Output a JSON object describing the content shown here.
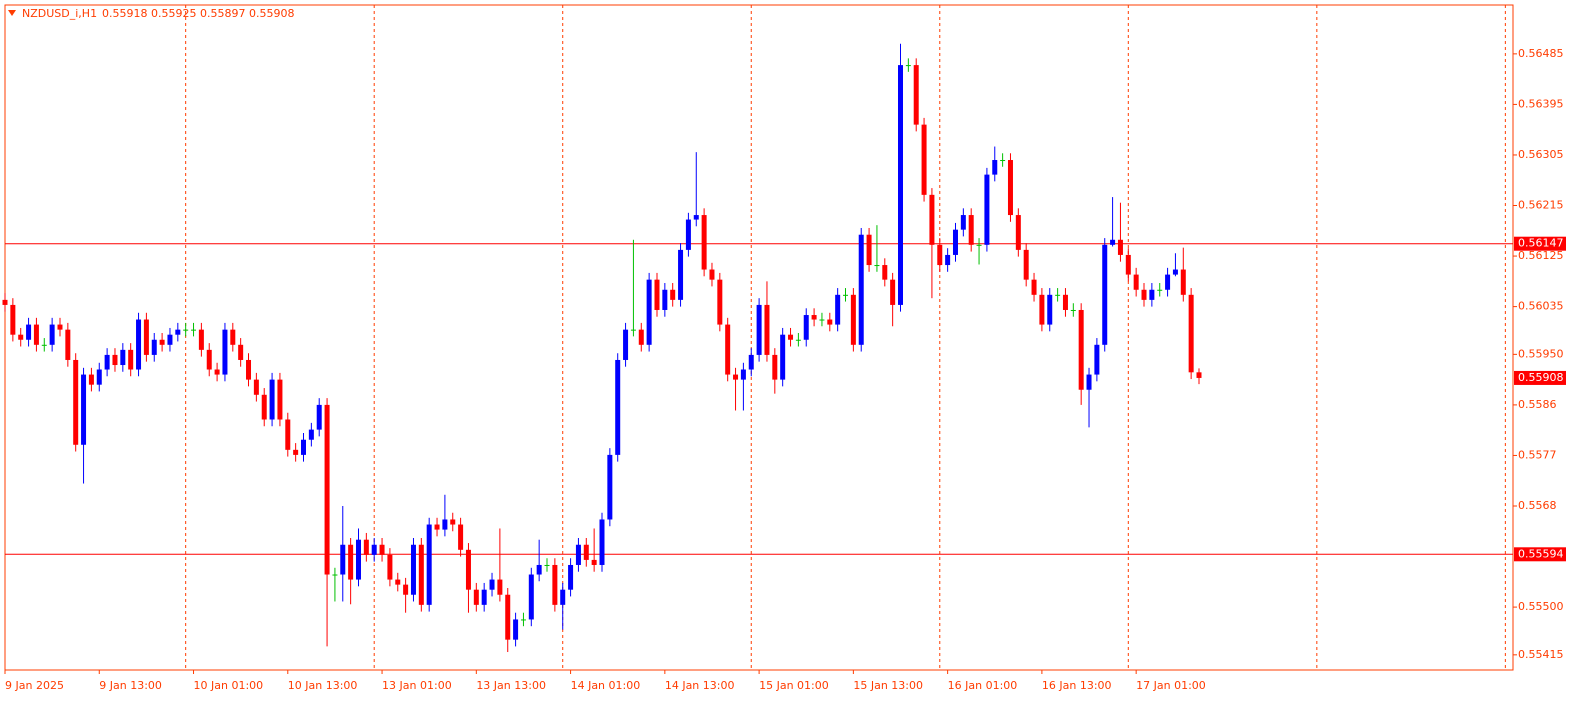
{
  "chart_data": {
    "type": "candlestick",
    "title": "NZDUSD_i,H1",
    "info": "0.55918 0.55925 0.55897 0.55908",
    "colors": {
      "up": "#0000ff",
      "down": "#ff0000",
      "doji": "#00c000",
      "text": "#ff3c00",
      "level": "#ff0000"
    },
    "ylim": [
      0.55388,
      0.56572
    ],
    "yticks": [
      0.56485,
      0.56395,
      0.56305,
      0.56215,
      0.56125,
      0.56035,
      {
        "value": 0.5595,
        "label": "0.55950"
      },
      0.5586,
      0.5577,
      0.5568,
      {
        "value": 0.555,
        "label": "0.55500"
      },
      0.55415
    ],
    "levels": [
      {
        "value": 0.56147
      },
      {
        "value": 0.55594
      }
    ],
    "current_price": 0.55908,
    "categories": [
      "9 Jan 2025",
      null,
      null,
      null,
      null,
      null,
      null,
      null,
      null,
      null,
      null,
      null,
      "9 Jan 13:00",
      null,
      null,
      null,
      null,
      null,
      null,
      null,
      null,
      null,
      null,
      null,
      "10 Jan 01:00",
      null,
      null,
      null,
      null,
      null,
      null,
      null,
      null,
      null,
      null,
      null,
      "10 Jan 13:00",
      null,
      null,
      null,
      null,
      null,
      null,
      null,
      null,
      null,
      null,
      null,
      "13 Jan 01:00",
      null,
      null,
      null,
      null,
      null,
      null,
      null,
      null,
      null,
      null,
      null,
      "13 Jan 13:00",
      null,
      null,
      null,
      null,
      null,
      null,
      null,
      null,
      null,
      null,
      null,
      "14 Jan 01:00",
      null,
      null,
      null,
      null,
      null,
      null,
      null,
      null,
      null,
      null,
      null,
      "14 Jan 13:00",
      null,
      null,
      null,
      null,
      null,
      null,
      null,
      null,
      null,
      null,
      null,
      "15 Jan 01:00",
      null,
      null,
      null,
      null,
      null,
      null,
      null,
      null,
      null,
      null,
      null,
      "15 Jan 13:00",
      null,
      null,
      null,
      null,
      null,
      null,
      null,
      null,
      null,
      null,
      null,
      "16 Jan 01:00",
      null,
      null,
      null,
      null,
      null,
      null,
      null,
      null,
      null,
      null,
      null,
      "16 Jan 13:00",
      null,
      null,
      null,
      null,
      null,
      null,
      null,
      null,
      null,
      null,
      null,
      "17 Jan 01:00",
      null,
      null,
      null,
      null,
      null,
      null,
      null,
      null
    ],
    "ohlc": [
      [
        0.56047,
        0.56059,
        0.56026,
        0.56038
      ],
      [
        0.56038,
        0.5605,
        0.55973,
        0.55985
      ],
      [
        0.55985,
        0.55997,
        0.55964,
        0.55976
      ],
      [
        0.55976,
        0.56015,
        0.55964,
        0.56003
      ],
      [
        0.56003,
        0.56015,
        0.55955,
        0.55967
      ],
      [
        0.55967,
        0.55979,
        0.55955,
        0.55967
      ],
      [
        0.55967,
        0.56015,
        0.55955,
        0.56003
      ],
      [
        0.56003,
        0.56015,
        0.55982,
        0.55994
      ],
      [
        0.55994,
        0.56006,
        0.55928,
        0.5594
      ],
      [
        0.5594,
        0.55952,
        0.55777,
        0.55789
      ],
      [
        0.55789,
        0.55926,
        0.5572,
        0.55914
      ],
      [
        0.55914,
        0.55926,
        0.55884,
        0.55896
      ],
      [
        0.55896,
        0.55935,
        0.55884,
        0.55923
      ],
      [
        0.55923,
        0.55961,
        0.55911,
        0.55949
      ],
      [
        0.55949,
        0.55961,
        0.55919,
        0.55931
      ],
      [
        0.55931,
        0.5597,
        0.55919,
        0.55958
      ],
      [
        0.55958,
        0.5597,
        0.55911,
        0.55923
      ],
      [
        0.55923,
        0.56024,
        0.55911,
        0.56012
      ],
      [
        0.56012,
        0.56024,
        0.55937,
        0.55949
      ],
      [
        0.55949,
        0.55988,
        0.55937,
        0.55976
      ],
      [
        0.55976,
        0.55988,
        0.55955,
        0.55967
      ],
      [
        0.55967,
        0.55997,
        0.55955,
        0.55985
      ],
      [
        0.55985,
        0.56006,
        0.55973,
        0.55994
      ],
      [
        0.55994,
        0.56006,
        0.55982,
        0.55994
      ],
      [
        0.55994,
        0.56006,
        0.55982,
        0.55994
      ],
      [
        0.55994,
        0.56006,
        0.55946,
        0.55958
      ],
      [
        0.55958,
        0.5597,
        0.55911,
        0.55923
      ],
      [
        0.55923,
        0.55935,
        0.55902,
        0.55914
      ],
      [
        0.55914,
        0.56006,
        0.55902,
        0.55994
      ],
      [
        0.55994,
        0.56006,
        0.55955,
        0.55967
      ],
      [
        0.55967,
        0.55979,
        0.55928,
        0.5594
      ],
      [
        0.5594,
        0.55952,
        0.55893,
        0.55905
      ],
      [
        0.55905,
        0.55917,
        0.55866,
        0.55878
      ],
      [
        0.55878,
        0.5589,
        0.55822,
        0.55834
      ],
      [
        0.55834,
        0.55917,
        0.55822,
        0.55905
      ],
      [
        0.55905,
        0.55917,
        0.55822,
        0.55834
      ],
      [
        0.55834,
        0.55846,
        0.55768,
        0.5578
      ],
      [
        0.5578,
        0.55792,
        0.55759,
        0.55771
      ],
      [
        0.55771,
        0.5581,
        0.55759,
        0.55798
      ],
      [
        0.55798,
        0.55828,
        0.55786,
        0.55816
      ],
      [
        0.55816,
        0.55872,
        0.55804,
        0.5586
      ],
      [
        0.5586,
        0.55872,
        0.5543,
        0.55558
      ],
      [
        0.55558,
        0.5557,
        0.5551,
        0.55558
      ],
      [
        0.55558,
        0.5568,
        0.5551,
        0.55611
      ],
      [
        0.55611,
        0.55623,
        0.55505,
        0.55549
      ],
      [
        0.55549,
        0.5564,
        0.55537,
        0.5562
      ],
      [
        0.5562,
        0.55632,
        0.55581,
        0.55593
      ],
      [
        0.55593,
        0.55623,
        0.55581,
        0.55611
      ],
      [
        0.55611,
        0.55623,
        0.55581,
        0.55593
      ],
      [
        0.55593,
        0.55605,
        0.55537,
        0.55549
      ],
      [
        0.55549,
        0.55561,
        0.55528,
        0.5554
      ],
      [
        0.5554,
        0.55552,
        0.5549,
        0.55522
      ],
      [
        0.55522,
        0.55623,
        0.5551,
        0.55611
      ],
      [
        0.55611,
        0.55623,
        0.55492,
        0.55504
      ],
      [
        0.55504,
        0.55659,
        0.55492,
        0.55647
      ],
      [
        0.55647,
        0.55659,
        0.55626,
        0.55638
      ],
      [
        0.55638,
        0.557,
        0.55626,
        0.55656
      ],
      [
        0.55656,
        0.55668,
        0.55635,
        0.55647
      ],
      [
        0.55647,
        0.55659,
        0.5559,
        0.55602
      ],
      [
        0.55602,
        0.55614,
        0.5549,
        0.55531
      ],
      [
        0.55531,
        0.55543,
        0.55492,
        0.55504
      ],
      [
        0.55504,
        0.55543,
        0.55492,
        0.55531
      ],
      [
        0.55531,
        0.55561,
        0.55519,
        0.55549
      ],
      [
        0.55549,
        0.5564,
        0.5551,
        0.55522
      ],
      [
        0.55522,
        0.55534,
        0.5542,
        0.55442
      ],
      [
        0.55442,
        0.5549,
        0.5543,
        0.55478
      ],
      [
        0.55478,
        0.5549,
        0.55466,
        0.55478
      ],
      [
        0.55478,
        0.5557,
        0.55466,
        0.55558
      ],
      [
        0.55558,
        0.5562,
        0.55546,
        0.55575
      ],
      [
        0.55575,
        0.55587,
        0.55563,
        0.55575
      ],
      [
        0.55575,
        0.55587,
        0.55492,
        0.55504
      ],
      [
        0.55504,
        0.55543,
        0.5546,
        0.55531
      ],
      [
        0.55531,
        0.55587,
        0.55519,
        0.55575
      ],
      [
        0.55575,
        0.55623,
        0.55563,
        0.55611
      ],
      [
        0.55611,
        0.55623,
        0.55572,
        0.55584
      ],
      [
        0.55584,
        0.5564,
        0.55563,
        0.55575
      ],
      [
        0.55575,
        0.55668,
        0.55563,
        0.55656
      ],
      [
        0.55656,
        0.55783,
        0.55644,
        0.55771
      ],
      [
        0.55771,
        0.55952,
        0.55759,
        0.5594
      ],
      [
        0.5594,
        0.56006,
        0.55928,
        0.55994
      ],
      [
        0.55994,
        0.56154,
        0.55982,
        0.55994
      ],
      [
        0.55994,
        0.56006,
        0.55955,
        0.55967
      ],
      [
        0.55967,
        0.56095,
        0.55955,
        0.56083
      ],
      [
        0.56083,
        0.56095,
        0.56017,
        0.56029
      ],
      [
        0.56029,
        0.56077,
        0.56017,
        0.56065
      ],
      [
        0.56065,
        0.56077,
        0.56035,
        0.56047
      ],
      [
        0.56047,
        0.56148,
        0.56035,
        0.56136
      ],
      [
        0.56136,
        0.56202,
        0.56124,
        0.5619
      ],
      [
        0.5619,
        0.5631,
        0.56178,
        0.56198
      ],
      [
        0.56198,
        0.5621,
        0.56089,
        0.56101
      ],
      [
        0.56101,
        0.56113,
        0.56071,
        0.56083
      ],
      [
        0.56083,
        0.56095,
        0.55991,
        0.56003
      ],
      [
        0.56003,
        0.56015,
        0.55902,
        0.55914
      ],
      [
        0.55914,
        0.55926,
        0.5585,
        0.55905
      ],
      [
        0.55905,
        0.55935,
        0.5585,
        0.55923
      ],
      [
        0.55923,
        0.55961,
        0.55911,
        0.55949
      ],
      [
        0.55949,
        0.5605,
        0.55937,
        0.56038
      ],
      [
        0.56038,
        0.5608,
        0.55937,
        0.55949
      ],
      [
        0.55949,
        0.55961,
        0.5588,
        0.55905
      ],
      [
        0.55905,
        0.55997,
        0.55893,
        0.55985
      ],
      [
        0.55985,
        0.55997,
        0.55964,
        0.55976
      ],
      [
        0.55976,
        0.55988,
        0.55964,
        0.55976
      ],
      [
        0.55976,
        0.56032,
        0.55964,
        0.5602
      ],
      [
        0.5602,
        0.56032,
        0.56,
        0.56012
      ],
      [
        0.56012,
        0.56024,
        0.56,
        0.56012
      ],
      [
        0.56012,
        0.56024,
        0.55991,
        0.56003
      ],
      [
        0.56003,
        0.56068,
        0.55991,
        0.56056
      ],
      [
        0.56056,
        0.56068,
        0.56044,
        0.56056
      ],
      [
        0.56056,
        0.56068,
        0.55955,
        0.55967
      ],
      [
        0.55967,
        0.56175,
        0.55955,
        0.56163
      ],
      [
        0.56163,
        0.56175,
        0.56097,
        0.56109
      ],
      [
        0.56109,
        0.5618,
        0.56097,
        0.56109
      ],
      [
        0.56109,
        0.56121,
        0.56071,
        0.56083
      ],
      [
        0.56083,
        0.56095,
        0.56,
        0.56038
      ],
      [
        0.56038,
        0.56503,
        0.56026,
        0.56465
      ],
      [
        0.56465,
        0.56477,
        0.56453,
        0.56465
      ],
      [
        0.56465,
        0.56477,
        0.56347,
        0.56359
      ],
      [
        0.56359,
        0.56371,
        0.56222,
        0.56234
      ],
      [
        0.56234,
        0.56246,
        0.5605,
        0.56145
      ],
      [
        0.56145,
        0.56157,
        0.56097,
        0.56109
      ],
      [
        0.56109,
        0.56139,
        0.56097,
        0.56127
      ],
      [
        0.56127,
        0.56184,
        0.56115,
        0.56172
      ],
      [
        0.56172,
        0.5621,
        0.5616,
        0.56198
      ],
      [
        0.56198,
        0.5621,
        0.56133,
        0.56145
      ],
      [
        0.56145,
        0.56157,
        0.5611,
        0.56145
      ],
      [
        0.56145,
        0.56282,
        0.56133,
        0.5627
      ],
      [
        0.5627,
        0.5632,
        0.56258,
        0.56296
      ],
      [
        0.56296,
        0.56308,
        0.56284,
        0.56296
      ],
      [
        0.56296,
        0.56308,
        0.56186,
        0.56198
      ],
      [
        0.56198,
        0.5621,
        0.56124,
        0.56136
      ],
      [
        0.56136,
        0.56148,
        0.56071,
        0.56083
      ],
      [
        0.56083,
        0.56095,
        0.56044,
        0.56056
      ],
      [
        0.56056,
        0.56068,
        0.55991,
        0.56003
      ],
      [
        0.56003,
        0.56068,
        0.55991,
        0.56056
      ],
      [
        0.56056,
        0.56068,
        0.56044,
        0.56056
      ],
      [
        0.56056,
        0.56068,
        0.56017,
        0.56029
      ],
      [
        0.56029,
        0.56041,
        0.56017,
        0.56029
      ],
      [
        0.56029,
        0.56041,
        0.5586,
        0.55887
      ],
      [
        0.55887,
        0.55926,
        0.5582,
        0.55914
      ],
      [
        0.55914,
        0.55979,
        0.55902,
        0.55967
      ],
      [
        0.55967,
        0.56157,
        0.55955,
        0.56145
      ],
      [
        0.56145,
        0.5623,
        0.56142,
        0.56154
      ],
      [
        0.56154,
        0.5622,
        0.56115,
        0.56127
      ],
      [
        0.56127,
        0.56139,
        0.5608,
        0.56092
      ],
      [
        0.56092,
        0.56104,
        0.56053,
        0.56065
      ],
      [
        0.56065,
        0.56077,
        0.56035,
        0.56047
      ],
      [
        0.56047,
        0.56077,
        0.56035,
        0.56065
      ],
      [
        0.56065,
        0.56077,
        0.56053,
        0.56065
      ],
      [
        0.56065,
        0.56104,
        0.56053,
        0.56092
      ],
      [
        0.56092,
        0.5613,
        0.56089,
        0.56101
      ],
      [
        0.56101,
        0.5614,
        0.56044,
        0.56056
      ],
      [
        0.56056,
        0.56068,
        0.55906,
        0.55918
      ],
      [
        0.55918,
        0.55925,
        0.55897,
        0.55908
      ]
    ]
  }
}
